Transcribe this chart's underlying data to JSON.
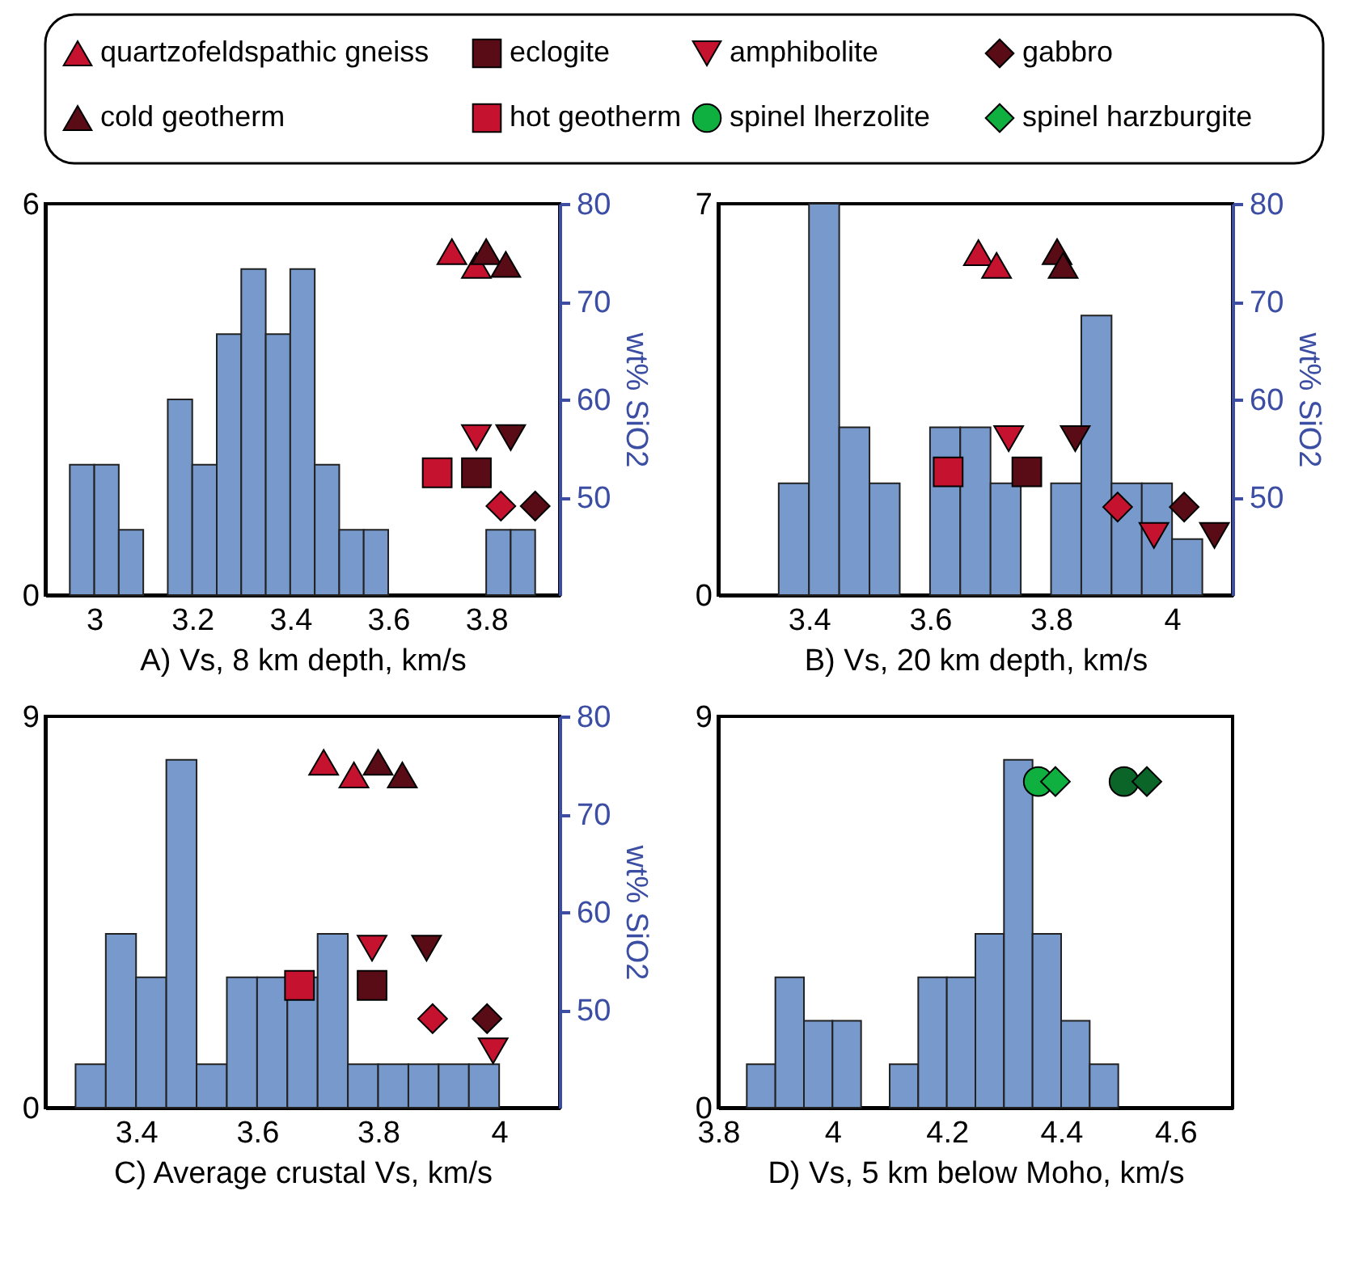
{
  "chart_data": [
    {
      "type": "histogram",
      "xlabel": "A)   Vs, 8 km depth, km/s",
      "y2label": "wt% SiO2",
      "xlim": [
        2.9,
        3.95
      ],
      "xticks": [
        3,
        3.2,
        3.4,
        3.6,
        3.8
      ],
      "ylim": [
        0,
        6
      ],
      "yticks": [
        0,
        6
      ],
      "y2lim": [
        40,
        80
      ],
      "y2ticks": [
        50,
        60,
        70,
        80
      ],
      "legend": "top",
      "bins": [
        2.95,
        3,
        3.05,
        3.1,
        3.15,
        3.2,
        3.25,
        3.3,
        3.35,
        3.4,
        3.45,
        3.5,
        3.55,
        3.6,
        3.65,
        3.7,
        3.75,
        3.8,
        3.85,
        3.9
      ],
      "series": [
        {
          "type": "histogram",
          "color": "#7799cc",
          "values": [
            2,
            2,
            1,
            0,
            3,
            2,
            4,
            5,
            4,
            5,
            2,
            1,
            1,
            0,
            0,
            0,
            0,
            1,
            1
          ]
        },
        {
          "type": "scatter",
          "name": "quartzofeldspathic gneiss",
          "color": "#c4122f",
          "marker": "triangle",
          "axis": "y2",
          "x": [
            3.73,
            3.78
          ],
          "values": [
            75.1,
            73.7
          ]
        },
        {
          "type": "scatter",
          "name": "eclogite",
          "color": "#5a0c16",
          "marker": "square",
          "axis": "y2",
          "x": [
            3.78
          ],
          "values": [
            52.5
          ]
        },
        {
          "type": "scatter",
          "name": "amphibolite",
          "color": "#c4122f",
          "marker": "triangle-down",
          "axis": "y2",
          "x": [
            3.78
          ],
          "values": [
            56.1
          ]
        },
        {
          "type": "scatter",
          "name": "gabbro",
          "color": "#5a0c16",
          "marker": "diamond",
          "axis": "y2",
          "x": [
            3.9
          ],
          "values": [
            49.1
          ]
        },
        {
          "type": "scatter",
          "name": "cold geotherm",
          "color": "#5a0c16",
          "marker": "triangle",
          "axis": "y2",
          "x": [
            3.8,
            3.84
          ],
          "values": [
            75.1,
            73.8
          ]
        },
        {
          "type": "scatter",
          "name": "hot geotherm",
          "color": "#c4122f",
          "marker": "square",
          "axis": "y2",
          "x": [
            3.7
          ],
          "values": [
            52.5
          ]
        },
        {
          "type": "scatter",
          "color": "#5a0c16",
          "marker": "triangle-down",
          "axis": "y2",
          "x": [
            3.85
          ],
          "values": [
            56.1
          ]
        },
        {
          "type": "scatter",
          "color": "#c4122f",
          "marker": "diamond",
          "axis": "y2",
          "x": [
            3.83
          ],
          "values": [
            49.1
          ]
        }
      ]
    },
    {
      "type": "histogram",
      "xlabel": "B)   Vs, 20 km depth, km/s",
      "y2label": "wt% SiO2",
      "xlim": [
        3.25,
        4.1
      ],
      "xticks": [
        3.4,
        3.6,
        3.8,
        4
      ],
      "ylim": [
        0,
        7
      ],
      "yticks": [
        0,
        7
      ],
      "y2lim": [
        40,
        80
      ],
      "y2ticks": [
        50,
        60,
        70,
        80
      ],
      "bins": [
        3.35,
        3.4,
        3.45,
        3.5,
        3.55,
        3.6,
        3.65,
        3.7,
        3.75,
        3.8,
        3.85,
        3.9,
        3.95,
        4,
        4.05
      ],
      "series": [
        {
          "type": "histogram",
          "color": "#7799cc",
          "values": [
            2,
            7,
            3,
            2,
            0,
            3,
            3,
            2,
            0,
            2,
            5,
            2,
            2,
            1
          ]
        },
        {
          "type": "scatter",
          "name": "quartzofeldspathic gneiss",
          "color": "#c4122f",
          "marker": "triangle",
          "axis": "y2",
          "x": [
            3.68,
            3.71
          ],
          "values": [
            75,
            73.7
          ]
        },
        {
          "type": "scatter",
          "name": "eclogite",
          "color": "#5a0c16",
          "marker": "square",
          "axis": "y2",
          "x": [
            3.76
          ],
          "values": [
            52.6
          ]
        },
        {
          "type": "scatter",
          "name": "amphibolite",
          "color": "#c4122f",
          "marker": "triangle-down",
          "axis": "y2",
          "x": [
            3.73,
            3.97
          ],
          "values": [
            56,
            46.1
          ]
        },
        {
          "type": "scatter",
          "name": "gabbro",
          "color": "#5a0c16",
          "marker": "diamond",
          "axis": "y2",
          "x": [
            4.02
          ],
          "values": [
            49
          ]
        },
        {
          "type": "scatter",
          "name": "cold geotherm",
          "color": "#5a0c16",
          "marker": "triangle",
          "axis": "y2",
          "x": [
            3.81,
            3.82
          ],
          "values": [
            75.1,
            73.7
          ]
        },
        {
          "type": "scatter",
          "name": "hot geotherm",
          "color": "#c4122f",
          "marker": "square",
          "axis": "y2",
          "x": [
            3.63
          ],
          "values": [
            52.6
          ]
        },
        {
          "type": "scatter",
          "color": "#5a0c16",
          "marker": "triangle-down",
          "axis": "y2",
          "x": [
            3.84,
            4.07
          ],
          "values": [
            56,
            46.1
          ]
        },
        {
          "type": "scatter",
          "color": "#c4122f",
          "marker": "diamond",
          "axis": "y2",
          "x": [
            3.91
          ],
          "values": [
            49
          ]
        }
      ]
    },
    {
      "type": "histogram",
      "xlabel": "C)   Average crustal Vs, km/s",
      "y2label": "wt% SiO2",
      "xlim": [
        3.25,
        4.1
      ],
      "xticks": [
        3.4,
        3.6,
        3.8,
        4
      ],
      "ylim": [
        0,
        9
      ],
      "yticks": [
        0,
        9
      ],
      "y2lim": [
        40,
        80
      ],
      "y2ticks": [
        50,
        60,
        70,
        80
      ],
      "bins": [
        3.3,
        3.35,
        3.4,
        3.45,
        3.5,
        3.55,
        3.6,
        3.65,
        3.7,
        3.75,
        3.8,
        3.85,
        3.9,
        3.95,
        4
      ],
      "series": [
        {
          "type": "histogram",
          "color": "#7799cc",
          "values": [
            1,
            4,
            3,
            8,
            1,
            3,
            3,
            3,
            4,
            1,
            1,
            1,
            1,
            1
          ]
        },
        {
          "type": "scatter",
          "name": "quartzofeldspathic gneiss",
          "color": "#c4122f",
          "marker": "triangle",
          "axis": "y2",
          "x": [
            3.71,
            3.76
          ],
          "values": [
            75.3,
            74
          ]
        },
        {
          "type": "scatter",
          "name": "eclogite",
          "color": "#5a0c16",
          "marker": "square",
          "axis": "y2",
          "x": [
            3.79
          ],
          "values": [
            52.5
          ]
        },
        {
          "type": "scatter",
          "name": "amphibolite",
          "color": "#c4122f",
          "marker": "triangle-down",
          "axis": "y2",
          "x": [
            3.79,
            3.99
          ],
          "values": [
            56.3,
            45.8
          ]
        },
        {
          "type": "scatter",
          "name": "gabbro",
          "color": "#5a0c16",
          "marker": "diamond",
          "axis": "y2",
          "x": [
            3.98
          ],
          "values": [
            49.1
          ]
        },
        {
          "type": "scatter",
          "name": "cold geotherm",
          "color": "#5a0c16",
          "marker": "triangle",
          "axis": "y2",
          "x": [
            3.8,
            3.84
          ],
          "values": [
            75.3,
            74
          ]
        },
        {
          "type": "scatter",
          "name": "hot geotherm",
          "color": "#c4122f",
          "marker": "square",
          "axis": "y2",
          "x": [
            3.67
          ],
          "values": [
            52.5
          ]
        },
        {
          "type": "scatter",
          "color": "#5a0c16",
          "marker": "triangle-down",
          "axis": "y2",
          "x": [
            3.88
          ],
          "values": [
            56.3
          ]
        },
        {
          "type": "scatter",
          "color": "#c4122f",
          "marker": "diamond",
          "axis": "y2",
          "x": [
            3.89
          ],
          "values": [
            49.1
          ]
        }
      ]
    },
    {
      "type": "histogram",
      "xlabel": "D)   Vs, 5 km below Moho, km/s",
      "xlim": [
        3.8,
        4.7
      ],
      "legend": "top",
      "xticks": [
        3.8,
        4,
        4.2,
        4.4,
        4.6
      ],
      "ylim": [
        0,
        9
      ],
      "yticks": [
        0,
        9
      ],
      "bins": [
        3.85,
        3.9,
        3.95,
        4,
        4.05,
        4.1,
        4.15,
        4.2,
        4.25,
        4.3,
        4.35,
        4.4,
        4.45,
        4.5
      ],
      "series": [
        {
          "type": "histogram",
          "color": "#7799cc",
          "values": [
            1,
            3,
            2,
            2,
            0,
            1,
            3,
            3,
            4,
            8,
            4,
            2,
            1
          ]
        },
        {
          "type": "scatter",
          "name": "spinel lherzolite",
          "color": "#10b040",
          "marker": "circle",
          "x": [
            4.36
          ],
          "values": [
            7.5
          ]
        },
        {
          "type": "scatter",
          "name": "spinel harzburgite",
          "color": "#10b040",
          "marker": "diamond",
          "x": [
            4.39
          ],
          "values": [
            7.5
          ]
        },
        {
          "type": "scatter",
          "color": "#0b6428",
          "marker": "circle",
          "x": [
            4.51
          ],
          "values": [
            7.5
          ]
        },
        {
          "type": "scatter",
          "color": "#0b6428",
          "marker": "diamond",
          "x": [
            4.55
          ],
          "values": [
            7.5
          ]
        }
      ]
    }
  ]
}
